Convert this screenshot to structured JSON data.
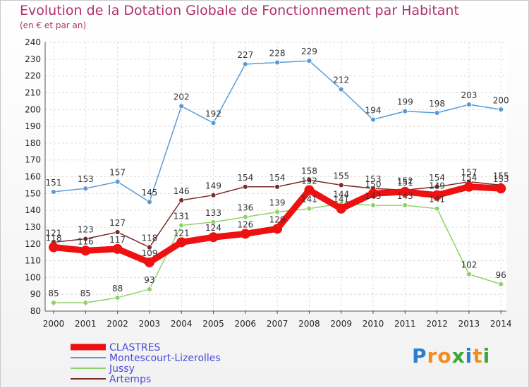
{
  "title": "Evolution de la Dotation Globale de Fonctionnement par Habitant",
  "subtitle": "(en € et par an)",
  "logo": {
    "letters": [
      "P",
      "r",
      "o",
      "x",
      "i",
      "t",
      "i"
    ],
    "colors": [
      "#2b7fd1",
      "#f28c1e",
      "#f28c1e",
      "#39a935",
      "#2b7fd1",
      "#f28c1e",
      "#39a935"
    ]
  },
  "chart_data": {
    "type": "line",
    "x": [
      2000,
      2001,
      2002,
      2003,
      2004,
      2005,
      2006,
      2007,
      2008,
      2009,
      2010,
      2011,
      2012,
      2013,
      2014
    ],
    "ylim": [
      80,
      240
    ],
    "yticks": [
      80,
      90,
      100,
      110,
      120,
      130,
      140,
      150,
      160,
      170,
      180,
      190,
      200,
      210,
      220,
      230,
      240
    ],
    "grid": true,
    "legend_position": "bottom-left",
    "series": [
      {
        "name": "Montescourt-Lizerolles",
        "color": "#5b9bd5",
        "values": [
          151,
          153,
          157,
          145,
          202,
          192,
          227,
          228,
          229,
          212,
          194,
          199,
          198,
          203,
          200
        ]
      },
      {
        "name": "Jussy",
        "color": "#8fd16a",
        "values": [
          85,
          85,
          88,
          93,
          131,
          133,
          136,
          139,
          141,
          144,
          143,
          143,
          141,
          102,
          96
        ]
      },
      {
        "name": "Artemps",
        "color": "#7a2a2a",
        "values": [
          121,
          123,
          127,
          118,
          146,
          149,
          154,
          154,
          158,
          155,
          153,
          152,
          154,
          157,
          155
        ]
      },
      {
        "name": "CLASTRES",
        "color": "#ee1111",
        "values": [
          118,
          116,
          117,
          109,
          121,
          124,
          126,
          129,
          152,
          141,
          150,
          151,
          149,
          154,
          153
        ]
      }
    ],
    "legend_order": [
      "CLASTRES",
      "Montescourt-Lizerolles",
      "Jussy",
      "Artemps"
    ]
  }
}
